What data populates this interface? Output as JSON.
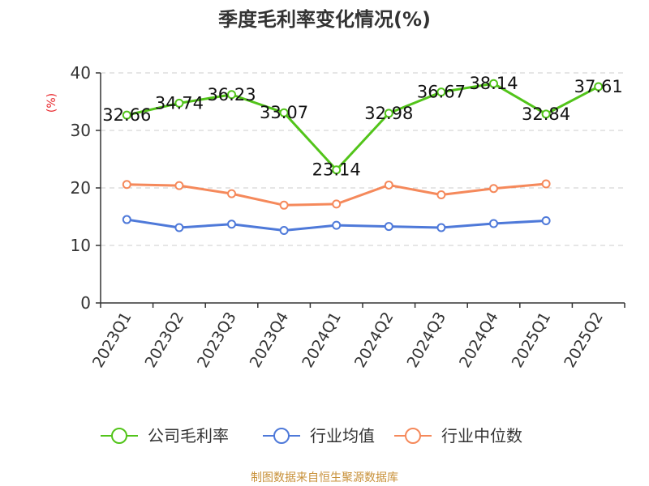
{
  "chart_data": {
    "type": "line",
    "title": "季度毛利率变化情况(%)",
    "ylabel": "(%)",
    "xlabel": "",
    "ylim": [
      0,
      40
    ],
    "yticks": [
      0,
      10,
      20,
      30,
      40
    ],
    "grid": true,
    "legend_position": "bottom",
    "categories": [
      "2023Q1",
      "2023Q2",
      "2023Q3",
      "2023Q4",
      "2024Q1",
      "2024Q2",
      "2024Q3",
      "2024Q4",
      "2025Q1",
      "2025Q2"
    ],
    "series": [
      {
        "name": "公司毛利率",
        "color": "#52c41a",
        "show_labels": true,
        "values": [
          32.66,
          34.74,
          36.23,
          33.07,
          23.14,
          32.98,
          36.67,
          38.14,
          32.84,
          37.61
        ],
        "labels": [
          "32.66",
          "34.74",
          "36.23",
          "33.07",
          "23.14",
          "32.98",
          "36.67",
          "38.14",
          "32.84",
          "37.61"
        ]
      },
      {
        "name": "行业均值",
        "color": "#4e79d9",
        "show_labels": false,
        "values": [
          14.5,
          13.1,
          13.7,
          12.6,
          13.5,
          13.3,
          13.1,
          13.8,
          14.3,
          null
        ]
      },
      {
        "name": "行业中位数",
        "color": "#f5895b",
        "show_labels": false,
        "values": [
          20.6,
          20.4,
          19.0,
          17.0,
          17.2,
          20.5,
          18.8,
          19.9,
          20.7,
          null
        ]
      }
    ],
    "source": "制图数据来自恒生聚源数据库"
  }
}
